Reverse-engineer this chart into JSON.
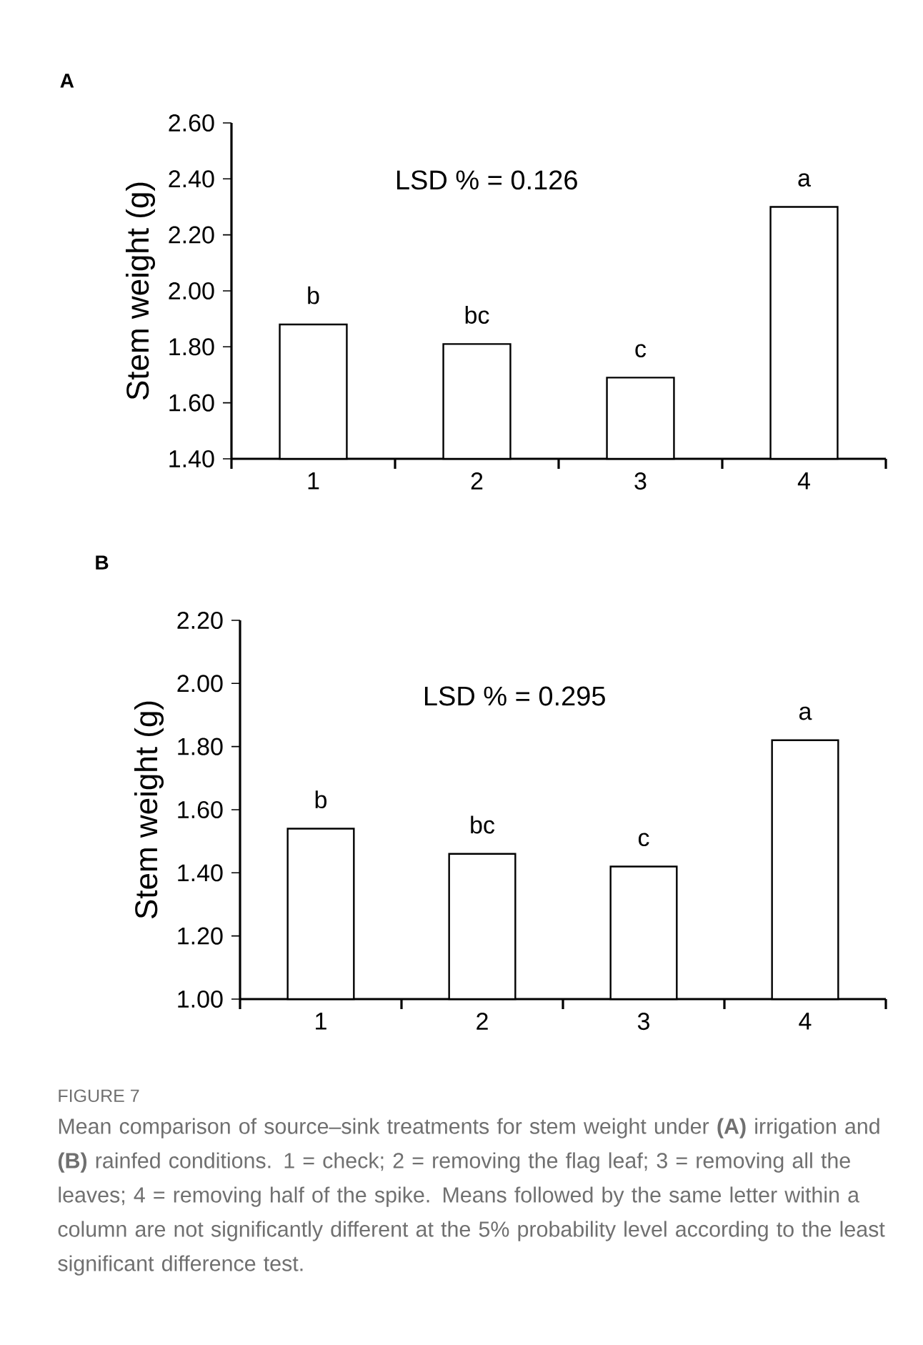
{
  "chart_data": [
    {
      "type": "bar",
      "title": "A",
      "ylabel": "Stem weight (g)",
      "categories": [
        "1",
        "2",
        "3",
        "4"
      ],
      "values": [
        1.88,
        1.81,
        1.69,
        2.3
      ],
      "color": "#ffffff",
      "ylim": [
        1.4,
        2.6
      ],
      "yticks": [
        {
          "value": 1.4,
          "label": "1.40"
        },
        {
          "value": 1.6,
          "label": "1.60"
        },
        {
          "value": 1.8,
          "label": "1.80"
        },
        {
          "value": 2.0,
          "label": "2.00"
        },
        {
          "value": 2.2,
          "label": "2.20"
        },
        {
          "value": 2.4,
          "label": "2.40"
        },
        {
          "value": 2.6,
          "label": "2.60"
        }
      ],
      "annotations": [
        "LSD % = 0.126",
        {
          "text": "b",
          "x": "1",
          "y": 1.88
        },
        {
          "text": "bc",
          "x": "2",
          "y": 1.81
        },
        {
          "text": "c",
          "x": "3",
          "y": 1.69
        },
        {
          "text": "a",
          "x": "4",
          "y": 2.3
        }
      ]
    },
    {
      "type": "bar",
      "title": "B",
      "ylabel": "Stem weight (g)",
      "categories": [
        "1",
        "2",
        "3",
        "4"
      ],
      "values": [
        1.54,
        1.46,
        1.42,
        1.82
      ],
      "color": "#ffffff",
      "ylim": [
        1.0,
        2.2
      ],
      "yticks": [
        {
          "value": 1.0,
          "label": "1.00"
        },
        {
          "value": 1.2,
          "label": "1.20"
        },
        {
          "value": 1.4,
          "label": "1.40"
        },
        {
          "value": 1.6,
          "label": "1.60"
        },
        {
          "value": 1.8,
          "label": "1.80"
        },
        {
          "value": 2.0,
          "label": "2.00"
        },
        {
          "value": 2.2,
          "label": "2.20"
        }
      ],
      "annotations": [
        "LSD % = 0.295",
        {
          "text": "b",
          "x": "1",
          "y": 1.54
        },
        {
          "text": "bc",
          "x": "2",
          "y": 1.46
        },
        {
          "text": "c",
          "x": "3",
          "y": 1.42
        },
        {
          "text": "a",
          "x": "4",
          "y": 1.82
        },
        "FIGURE 7",
        "Mean comparison of source–sink treatments for stem weight under **(A)** irrigation and **(B)** rainfed conditions. 1 = check; 2 = removing the flag leaf; 3 = removing all the leaves; 4 = removing half of the spike. Means followed by the same letter within a column are not significantly different at the 5% probability level according to the least significant difference test."
      ]
    }
  ]
}
